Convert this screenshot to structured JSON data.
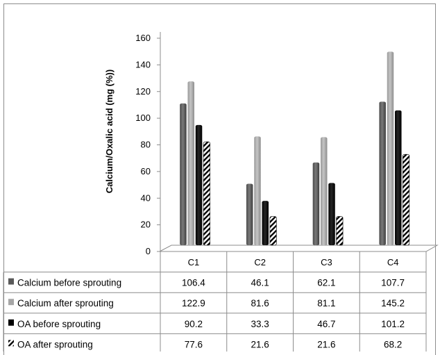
{
  "chart_data": {
    "type": "bar",
    "title": "",
    "ylabel": "Calcium/Oxalic acid (mg (%))",
    "xlabel": "",
    "ylim": [
      0,
      160
    ],
    "yticks": [
      "0",
      "20",
      "40",
      "60",
      "80",
      "100",
      "120",
      "140",
      "160"
    ],
    "categories": [
      "C1",
      "C2",
      "C3",
      "C4"
    ],
    "grid": false,
    "legend": "data-table",
    "series": [
      {
        "name": "Calcium before sprouting",
        "values": [
          106.4,
          46.1,
          62.1,
          107.7
        ],
        "color": "#595959",
        "pattern": "solid",
        "labels": [
          "106.4",
          "46.1",
          "62.1",
          "107.7"
        ]
      },
      {
        "name": "Calcium after sprouting",
        "values": [
          122.9,
          81.6,
          81.1,
          145.2
        ],
        "color": "#a6a6a6",
        "pattern": "solid",
        "labels": [
          "122.9",
          "81.6",
          "81.1",
          "145.2"
        ]
      },
      {
        "name": "OA before sprouting",
        "values": [
          90.2,
          33.3,
          46.7,
          101.2
        ],
        "color": "#000000",
        "pattern": "solid",
        "labels": [
          "90.2",
          "33.3",
          "46.7",
          "101.2"
        ]
      },
      {
        "name": "OA after sprouting",
        "values": [
          77.6,
          21.6,
          21.6,
          68.2
        ],
        "color": "#000000",
        "pattern": "diagonal-stripes",
        "labels": [
          "77.6",
          "21.6",
          "21.6",
          "68.2"
        ]
      }
    ]
  }
}
